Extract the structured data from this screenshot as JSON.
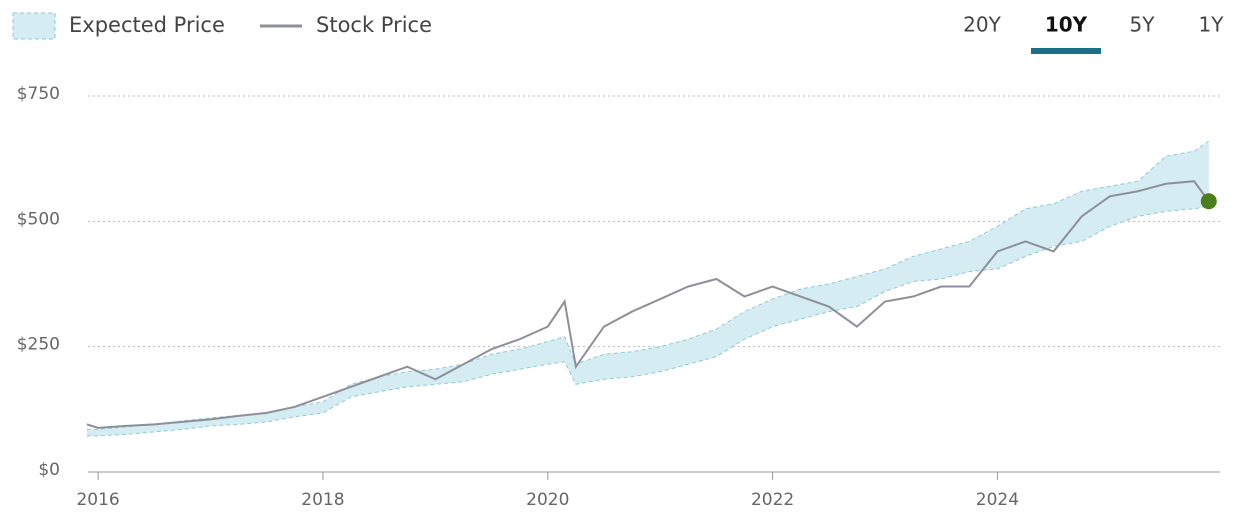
{
  "range_tabs": {
    "options": [
      "20Y",
      "10Y",
      "5Y",
      "1Y"
    ],
    "selected": "10Y"
  },
  "chart_data": {
    "type": "band-line",
    "x": [
      2015.9,
      2016.0,
      2016.25,
      2016.5,
      2016.75,
      2017.0,
      2017.25,
      2017.5,
      2017.75,
      2018.0,
      2018.25,
      2018.5,
      2018.75,
      2019.0,
      2019.25,
      2019.5,
      2019.75,
      2020.0,
      2020.15,
      2020.25,
      2020.5,
      2020.75,
      2021.0,
      2021.25,
      2021.5,
      2021.75,
      2022.0,
      2022.25,
      2022.5,
      2022.75,
      2023.0,
      2023.25,
      2023.5,
      2023.75,
      2024.0,
      2024.25,
      2024.5,
      2024.75,
      2025.0,
      2025.25,
      2025.5,
      2025.75,
      2025.88
    ],
    "series": [
      {
        "name": "Expected Price",
        "color": "#d4ecf2",
        "edge_color": "#8fcad8",
        "low": [
          72,
          72,
          75,
          80,
          85,
          92,
          95,
          100,
          110,
          118,
          150,
          160,
          170,
          175,
          180,
          195,
          205,
          215,
          220,
          175,
          185,
          190,
          200,
          215,
          230,
          265,
          290,
          305,
          320,
          330,
          360,
          380,
          385,
          400,
          405,
          430,
          450,
          460,
          490,
          510,
          520,
          525,
          530
        ],
        "high": [
          85,
          85,
          90,
          95,
          102,
          108,
          113,
          118,
          130,
          140,
          175,
          190,
          200,
          205,
          215,
          235,
          245,
          260,
          270,
          215,
          235,
          240,
          250,
          265,
          285,
          320,
          345,
          365,
          375,
          390,
          405,
          430,
          445,
          460,
          490,
          525,
          535,
          560,
          570,
          580,
          630,
          640,
          660
        ]
      },
      {
        "name": "Stock Price",
        "color": "#8e9099",
        "end_marker_color": "#4b7f1a",
        "values": [
          95,
          88,
          92,
          95,
          100,
          105,
          112,
          118,
          130,
          150,
          170,
          190,
          210,
          185,
          215,
          245,
          265,
          290,
          340,
          210,
          290,
          320,
          345,
          370,
          385,
          350,
          370,
          350,
          330,
          290,
          340,
          350,
          370,
          370,
          440,
          460,
          440,
          510,
          550,
          560,
          575,
          580,
          540
        ]
      }
    ],
    "xlim": [
      2015.91,
      2025.98
    ],
    "xticks": [
      2016,
      2018,
      2020,
      2022,
      2024
    ],
    "ylim": [
      0,
      750
    ],
    "yticks": [
      {
        "value": 0,
        "label": "$0"
      },
      {
        "value": 250,
        "label": "$250"
      },
      {
        "value": 500,
        "label": "$500"
      },
      {
        "value": 750,
        "label": "$750"
      }
    ],
    "grid": true
  }
}
